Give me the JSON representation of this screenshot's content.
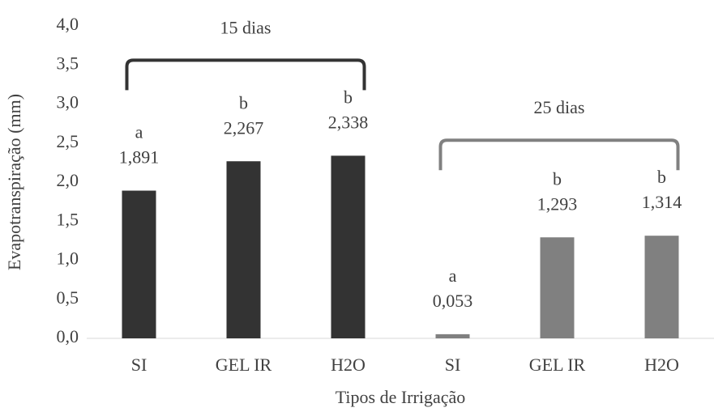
{
  "chart_data": {
    "type": "bar",
    "x_label": "Tipos de Irrigação",
    "y_label": "Evapotranspiração (mm)",
    "categories": [
      "SI",
      "GEL IR",
      "H2O",
      "SI",
      "GEL IR",
      "H2O"
    ],
    "values": [
      1.891,
      2.267,
      2.338,
      0.053,
      1.293,
      1.314
    ],
    "value_labels": [
      "1,891",
      "2,267",
      "2,338",
      "0,053",
      "1,293",
      "1,314"
    ],
    "letters": [
      "a",
      "b",
      "b",
      "a",
      "b",
      "b"
    ],
    "colors": [
      "#333333",
      "#333333",
      "#333333",
      "#808080",
      "#808080",
      "#808080"
    ],
    "groups": [
      {
        "label": "15 dias",
        "color": "#333333"
      },
      {
        "label": "25 dias",
        "color": "#808080"
      }
    ],
    "ylim": [
      0,
      4
    ],
    "yticks": [
      {
        "value": 0,
        "label": "0,0"
      },
      {
        "value": 0.5,
        "label": "0,5"
      },
      {
        "value": 1,
        "label": "1,0"
      },
      {
        "value": 1.5,
        "label": "1,5"
      },
      {
        "value": 2,
        "label": "2,0"
      },
      {
        "value": 2.5,
        "label": "2,5"
      },
      {
        "value": 3,
        "label": "3,0"
      },
      {
        "value": 3.5,
        "label": "3,5"
      },
      {
        "value": 4,
        "label": "4,0"
      }
    ],
    "grid": false
  }
}
